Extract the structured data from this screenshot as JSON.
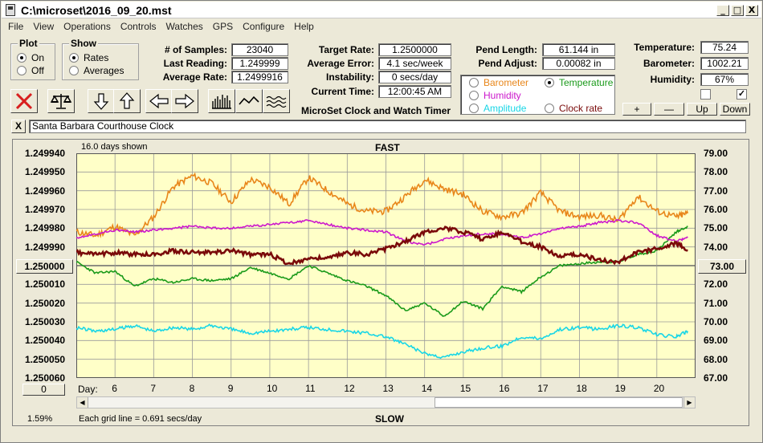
{
  "window": {
    "title": "C:\\microset\\2016_09_20.mst",
    "controls": [
      "_",
      "□",
      "X"
    ]
  },
  "menu": [
    "File",
    "View",
    "Operations",
    "Controls",
    "Watches",
    "GPS",
    "Configure",
    "Help"
  ],
  "plot_group": {
    "caption": "Plot",
    "options": [
      {
        "label": "On",
        "selected": true
      },
      {
        "label": "Off",
        "selected": false
      }
    ]
  },
  "show_group": {
    "caption": "Show",
    "options": [
      {
        "label": "Rates",
        "selected": true
      },
      {
        "label": "Averages",
        "selected": false
      }
    ]
  },
  "stats": {
    "samples_label": "# of Samples:",
    "samples": "23040",
    "last_label": "Last Reading:",
    "last": "1.249999",
    "avg_label": "Average Rate:",
    "avg": "1.2499916"
  },
  "targets": {
    "target_label": "Target Rate:",
    "target": "1.2500000",
    "error_label": "Average Error:",
    "error": "4.1 sec/week",
    "instab_label": "Instability:",
    "instab": "0 secs/day",
    "time_label": "Current Time:",
    "time": "12:00:45 AM"
  },
  "pend": {
    "length_label": "Pend Length:",
    "length": "61.144 in",
    "adjust_label": "Pend Adjust:",
    "adjust": "0.00082 in"
  },
  "env": {
    "temp_label": "Temperature:",
    "temp": "75.24",
    "baro_label": "Barometer:",
    "baro": "1002.21",
    "hum_label": "Humidity:",
    "hum": "67%"
  },
  "app_title": "MicroSet Clock and Watch Timer",
  "legend": [
    {
      "label": "Barometer",
      "color": "#e8861a",
      "selected": false
    },
    {
      "label": "Temperature",
      "color": "#1a9a1a",
      "selected": true
    },
    {
      "label": "Humidity",
      "color": "#cc18cc",
      "selected": false
    },
    {
      "label": "Amplitude",
      "color": "#19d6e6",
      "selected": false
    },
    {
      "label": "Clock rate",
      "color": "#7a0a0a",
      "selected": false
    }
  ],
  "checkboxes": [
    {
      "checked": false
    },
    {
      "checked": true
    }
  ],
  "scale_buttons": [
    "+",
    "—",
    "Up",
    "Down"
  ],
  "clock_name": "Santa Barbara Courthouse Clock",
  "close_x": "X",
  "plot_header": {
    "days_shown": "16.0 days shown",
    "fast": "FAST",
    "slow": "SLOW"
  },
  "plot_footer": {
    "grid_note": "Each grid line = 0.691 secs/day",
    "percent": "1.59%",
    "zero_button": "0",
    "day_label": "Day:"
  },
  "left_button": "1.250000",
  "right_button": "73.00",
  "chart_data": {
    "type": "line",
    "x_unit": "day",
    "xlim": [
      5.0,
      21.0
    ],
    "x_ticks": [
      6,
      7,
      8,
      9,
      10,
      11,
      12,
      13,
      14,
      15,
      16,
      17,
      18,
      19,
      20
    ],
    "left_axis": {
      "ticks": [
        "1.249940",
        "1.249950",
        "1.249960",
        "1.249970",
        "1.249980",
        "1.249990",
        "1.250000",
        "1.250010",
        "1.250020",
        "1.250030",
        "1.250040",
        "1.250050",
        "1.250060"
      ],
      "values": [
        1.24994,
        1.24995,
        1.24996,
        1.24997,
        1.24998,
        1.24999,
        1.25,
        1.25001,
        1.25002,
        1.25003,
        1.25004,
        1.25005,
        1.25006
      ],
      "inverted": true
    },
    "right_axis": {
      "ticks": [
        "79.00",
        "78.00",
        "77.00",
        "76.00",
        "75.00",
        "74.00",
        "73.00",
        "72.00",
        "71.00",
        "70.00",
        "69.00",
        "68.00",
        "67.00"
      ],
      "values": [
        79,
        78,
        77,
        76,
        75,
        74,
        73,
        72,
        71,
        70,
        69,
        68,
        67
      ]
    },
    "grid": true,
    "background": "#ffffc8",
    "series": [
      {
        "name": "Barometer",
        "color": "#e8861a",
        "axis": "right",
        "noise": 0.35,
        "seed": 11,
        "x": [
          5.0,
          5.5,
          6.0,
          6.5,
          7.0,
          7.5,
          8.0,
          8.5,
          9.0,
          9.5,
          10.0,
          10.5,
          11.0,
          11.5,
          12.0,
          12.5,
          13.0,
          13.5,
          14.0,
          14.5,
          15.0,
          15.5,
          16.0,
          16.5,
          17.0,
          17.5,
          18.0,
          18.5,
          19.0,
          19.5,
          20.0,
          20.5,
          20.8
        ],
        "y": [
          74.8,
          74.6,
          75.1,
          74.6,
          75.6,
          77.2,
          77.8,
          77.4,
          76.4,
          77.6,
          77.2,
          76.3,
          77.7,
          77.0,
          76.3,
          75.9,
          75.9,
          76.7,
          77.6,
          77.1,
          76.8,
          75.9,
          75.6,
          75.8,
          76.9,
          75.9,
          75.6,
          75.7,
          75.4,
          76.7,
          75.9,
          75.6,
          75.8
        ]
      },
      {
        "name": "Temperature",
        "color": "#1a9a1a",
        "axis": "right",
        "noise": 0.12,
        "seed": 23,
        "x": [
          5.0,
          5.5,
          6.0,
          6.5,
          7.0,
          7.5,
          8.0,
          8.5,
          9.0,
          9.5,
          10.0,
          10.5,
          11.0,
          11.5,
          12.0,
          12.5,
          13.0,
          13.5,
          14.0,
          14.5,
          15.0,
          15.5,
          16.0,
          16.5,
          17.0,
          17.5,
          18.0,
          18.5,
          19.0,
          19.5,
          20.0,
          20.5,
          20.8
        ],
        "y": [
          73.2,
          72.6,
          72.7,
          71.9,
          72.3,
          72.1,
          72.3,
          72.2,
          72.3,
          72.9,
          72.6,
          72.3,
          73.0,
          72.6,
          72.2,
          71.9,
          71.4,
          70.6,
          71.0,
          70.3,
          71.1,
          70.7,
          71.9,
          71.6,
          72.4,
          73.0,
          73.1,
          73.2,
          73.2,
          73.6,
          73.8,
          74.8,
          75.1
        ]
      },
      {
        "name": "Humidity",
        "color": "#cc18cc",
        "axis": "left",
        "noise": 1.2e-06,
        "seed": 37,
        "x": [
          5.0,
          5.5,
          6.0,
          6.5,
          7.0,
          7.5,
          8.0,
          8.5,
          9.0,
          9.5,
          10.0,
          10.5,
          11.0,
          11.5,
          12.0,
          12.5,
          13.0,
          13.5,
          14.0,
          14.5,
          15.0,
          15.5,
          16.0,
          16.5,
          17.0,
          17.5,
          18.0,
          18.5,
          19.0,
          19.5,
          20.0,
          20.5,
          20.8
        ],
        "y": [
          1.249985,
          1.249983,
          1.249981,
          1.249982,
          1.249981,
          1.24998,
          1.249979,
          1.24998,
          1.24998,
          1.249979,
          1.249978,
          1.249977,
          1.249976,
          1.249978,
          1.24998,
          1.249981,
          1.249982,
          1.249987,
          1.249989,
          1.249986,
          1.249984,
          1.249983,
          1.249983,
          1.249985,
          1.249983,
          1.24998,
          1.249979,
          1.249977,
          1.249976,
          1.249977,
          1.249984,
          1.249987,
          1.249985
        ]
      },
      {
        "name": "Amplitude",
        "color": "#19d6e6",
        "axis": "left",
        "noise": 1.8e-06,
        "seed": 41,
        "x": [
          5.0,
          5.5,
          6.0,
          6.5,
          7.0,
          7.5,
          8.0,
          8.5,
          9.0,
          9.5,
          10.0,
          10.5,
          11.0,
          11.5,
          12.0,
          12.5,
          13.0,
          13.5,
          14.0,
          14.5,
          15.0,
          15.5,
          16.0,
          16.5,
          17.0,
          17.5,
          18.0,
          18.5,
          19.0,
          19.5,
          20.0,
          20.5,
          20.8
        ],
        "y": [
          1.250033,
          1.250035,
          1.250034,
          1.250032,
          1.250035,
          1.250033,
          1.250034,
          1.250032,
          1.250034,
          1.250036,
          1.250035,
          1.250034,
          1.250033,
          1.250034,
          1.250035,
          1.250036,
          1.250038,
          1.250042,
          1.250047,
          1.250049,
          1.250046,
          1.250044,
          1.250043,
          1.250038,
          1.250039,
          1.250034,
          1.250033,
          1.250034,
          1.250032,
          1.250033,
          1.250037,
          1.250038,
          1.250035
        ]
      },
      {
        "name": "Clock rate",
        "color": "#7a0a0a",
        "axis": "left",
        "noise": 2.2e-06,
        "seed": 53,
        "x": [
          5.0,
          5.5,
          6.0,
          6.5,
          7.0,
          7.5,
          8.0,
          8.5,
          9.0,
          9.5,
          10.0,
          10.5,
          11.0,
          11.5,
          12.0,
          12.5,
          13.0,
          13.5,
          14.0,
          14.5,
          15.0,
          15.5,
          16.0,
          16.5,
          17.0,
          17.5,
          18.0,
          18.5,
          19.0,
          19.5,
          20.0,
          20.5,
          20.8
        ],
        "y": [
          1.249993,
          1.249994,
          1.249993,
          1.249994,
          1.249994,
          1.249992,
          1.249993,
          1.249993,
          1.249992,
          1.249994,
          1.249994,
          1.249999,
          1.249996,
          1.249996,
          1.249993,
          1.249994,
          1.249991,
          1.249987,
          1.249982,
          1.24998,
          1.249982,
          1.249986,
          1.249982,
          1.249987,
          1.24999,
          1.249995,
          1.249994,
          1.249997,
          1.249998,
          1.249993,
          1.249991,
          1.249988,
          1.249992
        ]
      }
    ]
  }
}
